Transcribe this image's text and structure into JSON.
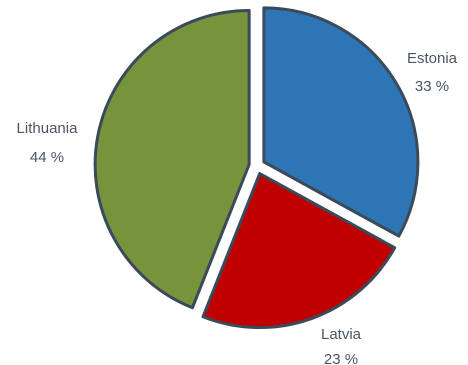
{
  "chart_data": {
    "type": "pie",
    "slices": [
      {
        "label": "Estonia",
        "value": 33,
        "value_text": "33 %",
        "color": "#2e75b6"
      },
      {
        "label": "Latvia",
        "value": 23,
        "value_text": "23 %",
        "color": "#c00000"
      },
      {
        "label": "Lithuania",
        "value": 44,
        "value_text": "44 %",
        "color": "#77933c"
      }
    ],
    "slice_border_color": "#3b4a5a",
    "label_color": "#4a5563",
    "exploded": true
  }
}
